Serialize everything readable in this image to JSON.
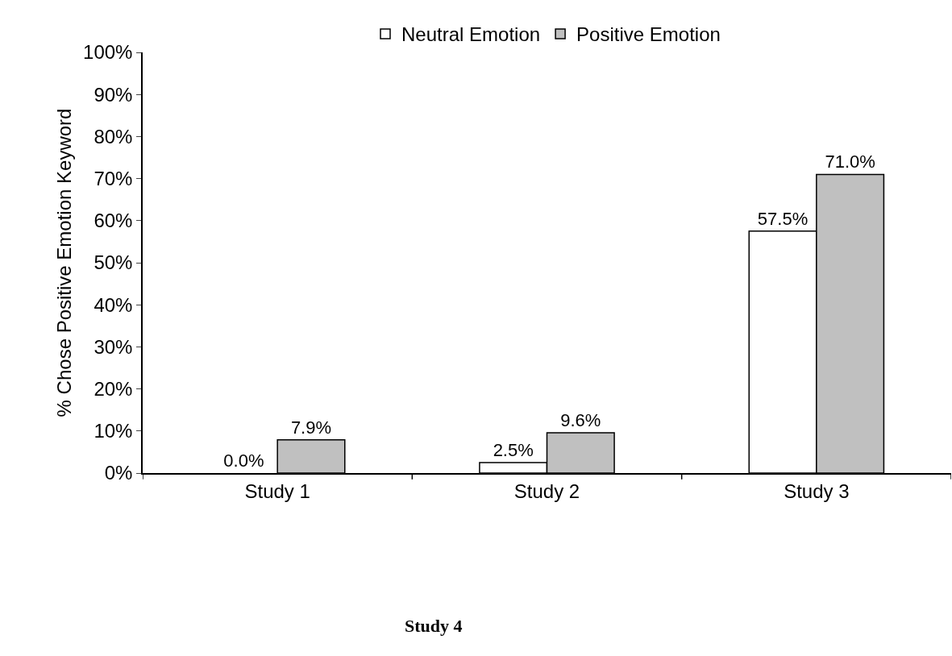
{
  "chart_data": {
    "type": "bar",
    "ylabel": "% Chose Positive Emotion Keyword",
    "categories": [
      "Study 1",
      "Study 2",
      "Study 3"
    ],
    "series": [
      {
        "name": "Neutral Emotion",
        "color": "#ffffff",
        "values": [
          0.0,
          2.5,
          57.5
        ],
        "value_labels": [
          "0.0%",
          "2.5%",
          "57.5%"
        ]
      },
      {
        "name": "Positive Emotion",
        "color": "#c0c0c0",
        "values": [
          7.9,
          9.6,
          71.0
        ],
        "value_labels": [
          "7.9%",
          "9.6%",
          "71.0%"
        ]
      }
    ],
    "ylim": [
      0,
      100
    ],
    "yticks": [
      {
        "value": 0,
        "label": "0%"
      },
      {
        "value": 10,
        "label": "10%"
      },
      {
        "value": 20,
        "label": "20%"
      },
      {
        "value": 30,
        "label": "30%"
      },
      {
        "value": 40,
        "label": "40%"
      },
      {
        "value": 50,
        "label": "50%"
      },
      {
        "value": 60,
        "label": "60%"
      },
      {
        "value": 70,
        "label": "70%"
      },
      {
        "value": 80,
        "label": "80%"
      },
      {
        "value": 90,
        "label": "90%"
      },
      {
        "value": 100,
        "label": "100%"
      }
    ],
    "grid": false,
    "legend": "top",
    "annotations": [
      "Study 4"
    ]
  }
}
